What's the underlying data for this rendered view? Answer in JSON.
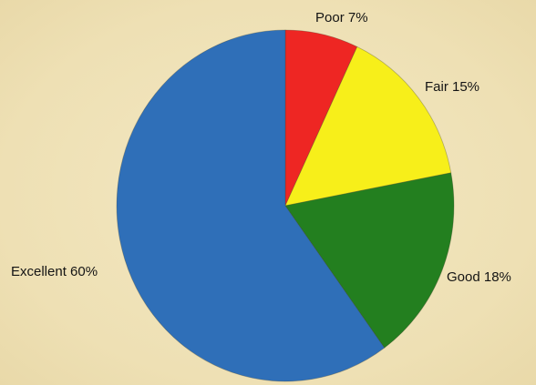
{
  "chart_data": {
    "type": "pie",
    "title": "",
    "slices": [
      {
        "name": "Poor",
        "value": 7,
        "color": "#ee2623",
        "label": "Poor 7%"
      },
      {
        "name": "Fair",
        "value": 15,
        "color": "#f7ef1a",
        "label": "Fair 15%"
      },
      {
        "name": "Good",
        "value": 18,
        "color": "#237f1f",
        "label": "Good 18%"
      },
      {
        "name": "Excellent",
        "value": 60,
        "color": "#2f6fb8",
        "label": "Excellent 60%"
      }
    ],
    "start": "top (12 o'clock), clockwise",
    "legend": "none (labels beside slices)"
  }
}
